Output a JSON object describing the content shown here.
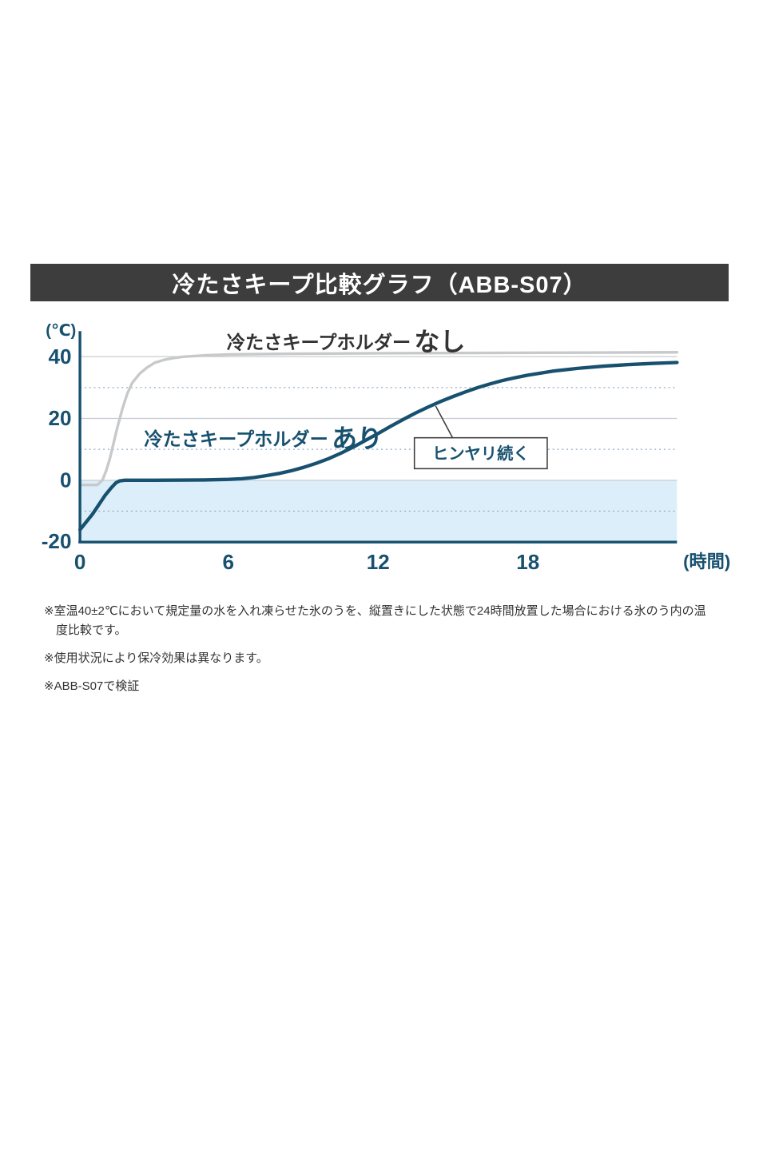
{
  "title_bar": {
    "text": "冷たさキープ比較グラフ（ABB-S07）",
    "bg_color": "#3d3d3d"
  },
  "chart_data": {
    "type": "line",
    "title": "冷たさキープ比較グラフ（ABB-S07）",
    "ylabel": "(℃)",
    "xlabel": "(時間)",
    "xlim": [
      0,
      24
    ],
    "ylim": [
      -20,
      45
    ],
    "x_ticks": [
      "0",
      "6",
      "12",
      "18"
    ],
    "x_tick_values": [
      0,
      6,
      12,
      18
    ],
    "y_ticks": [
      "40",
      "20",
      "0",
      "-20"
    ],
    "y_tick_values": [
      40,
      20,
      0,
      -20
    ],
    "solid_gridlines_y": [
      40,
      20,
      0
    ],
    "dashed_gridlines_y": [
      30,
      10,
      -10
    ],
    "axis_color": "#17516f",
    "shaded_region": {
      "from_y": 0,
      "to_y": -20,
      "color": "#dceef9"
    },
    "annotation": {
      "text": "ヒンヤリ続く",
      "attach_x": 14.3,
      "attach_y": 24
    },
    "series": [
      {
        "name": "冷たさキープホルダーなし",
        "label_prefix": "冷たさキープホルダー",
        "label_suffix": "なし",
        "color": "#c7c9ca",
        "label_color": "#333333",
        "points": [
          [
            0,
            -1.5
          ],
          [
            0.7,
            -1.5
          ],
          [
            0.9,
            0
          ],
          [
            1.05,
            3
          ],
          [
            1.2,
            7
          ],
          [
            1.35,
            12
          ],
          [
            1.5,
            17
          ],
          [
            1.7,
            23
          ],
          [
            1.9,
            28
          ],
          [
            2.1,
            31.5
          ],
          [
            2.4,
            34.5
          ],
          [
            2.7,
            36.5
          ],
          [
            3.0,
            38
          ],
          [
            3.4,
            39
          ],
          [
            3.8,
            39.6
          ],
          [
            4.2,
            40
          ],
          [
            5,
            40.4
          ],
          [
            6,
            40.7
          ],
          [
            8,
            40.9
          ],
          [
            10,
            41
          ],
          [
            12,
            41.1
          ],
          [
            16,
            41.2
          ],
          [
            20,
            41.3
          ],
          [
            24,
            41.4
          ]
        ]
      },
      {
        "name": "冷たさキープホルダーあり",
        "label_prefix": "冷たさキープホルダー",
        "label_suffix": "あり",
        "color": "#17516f",
        "label_color": "#17516f",
        "points": [
          [
            0,
            -16
          ],
          [
            0.25,
            -13.5
          ],
          [
            0.5,
            -11
          ],
          [
            0.75,
            -8
          ],
          [
            1.0,
            -5
          ],
          [
            1.25,
            -2.5
          ],
          [
            1.45,
            -0.8
          ],
          [
            1.6,
            -0.2
          ],
          [
            1.8,
            0
          ],
          [
            3,
            0
          ],
          [
            5,
            0.1
          ],
          [
            6,
            0.3
          ],
          [
            6.5,
            0.5
          ],
          [
            7,
            0.9
          ],
          [
            7.5,
            1.5
          ],
          [
            8,
            2.2
          ],
          [
            8.5,
            3.1
          ],
          [
            9,
            4.2
          ],
          [
            9.5,
            5.5
          ],
          [
            10,
            7
          ],
          [
            10.5,
            8.8
          ],
          [
            11,
            10.8
          ],
          [
            11.5,
            13
          ],
          [
            12,
            15.2
          ],
          [
            12.5,
            17.5
          ],
          [
            13,
            19.7
          ],
          [
            13.5,
            21.8
          ],
          [
            14,
            23.7
          ],
          [
            14.5,
            25.5
          ],
          [
            15,
            27.1
          ],
          [
            15.5,
            28.6
          ],
          [
            16,
            30
          ],
          [
            16.5,
            31.2
          ],
          [
            17,
            32.3
          ],
          [
            17.5,
            33.2
          ],
          [
            18,
            34
          ],
          [
            19,
            35.3
          ],
          [
            20,
            36.2
          ],
          [
            21,
            36.9
          ],
          [
            22,
            37.4
          ],
          [
            23,
            37.8
          ],
          [
            24,
            38.1
          ]
        ]
      }
    ]
  },
  "footnotes": [
    "※室温40±2℃において規定量の水を入れ凍らせた氷のうを、縦置きにした状態で24時間放置した場合における氷のう内の温度比較です。",
    "※使用状況により保冷効果は異なります。",
    "※ABB-S07で検証"
  ]
}
